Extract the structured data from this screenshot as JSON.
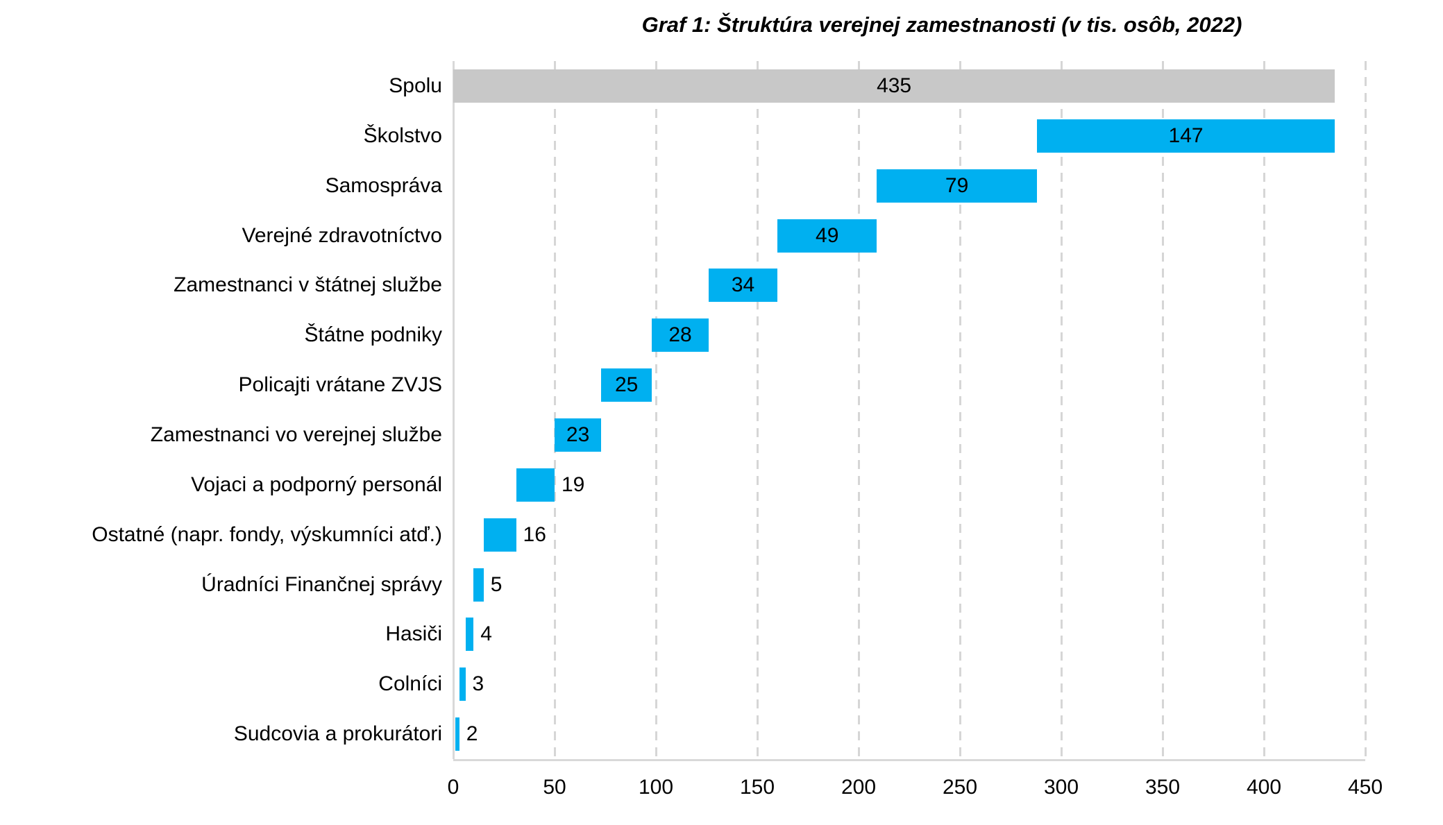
{
  "page": {
    "background": "#ffffff"
  },
  "chart_data": {
    "type": "bar",
    "subtype": "horizontal-waterfall",
    "title": "Graf 1: Štruktúra verejnej zamestnanosti (v tis. osôb, 2022)",
    "categories": [
      "Spolu",
      "Školstvo",
      "Samospráva",
      "Verejné zdravotníctvo",
      "Zamestnanci v štátnej službe",
      "Štátne podniky",
      "Policajti vrátane ZVJS",
      "Zamestnanci vo verejnej službe",
      "Vojaci a podporný personál",
      "Ostatné (napr. fondy, výskumníci atď.)",
      "Úradníci Finančnej správy",
      "Hasiči",
      "Colníci",
      "Sudcovia a prokurátori"
    ],
    "values": [
      435,
      147,
      79,
      49,
      34,
      28,
      25,
      23,
      19,
      16,
      5,
      4,
      3,
      2
    ],
    "value_labels": [
      "435",
      "147",
      "79",
      "49",
      "34",
      "28",
      "25",
      "23",
      "19",
      "16",
      "5",
      "4",
      "3",
      "2"
    ],
    "value_label_placement": [
      "inside",
      "inside",
      "inside",
      "inside",
      "inside",
      "inside",
      "inside",
      "inside",
      "outside",
      "outside",
      "outside",
      "outside",
      "outside",
      "outside"
    ],
    "total_category_index": 0,
    "xlabel": "",
    "ylabel": "",
    "xlim": [
      0,
      450
    ],
    "x_ticks": [
      0,
      50,
      100,
      150,
      200,
      250,
      300,
      350,
      400,
      450
    ],
    "x_tick_labels": [
      "0",
      "50",
      "100",
      "150",
      "200",
      "250",
      "300",
      "350",
      "400",
      "450"
    ],
    "grid": "vertical-dashed",
    "legend": "none",
    "colors": {
      "total_bar": "#c8c8c8",
      "bar": "#00b0f0",
      "gridline": "#d6d6d6",
      "axis_line": "#d9d9d9",
      "text": "#000000"
    }
  }
}
